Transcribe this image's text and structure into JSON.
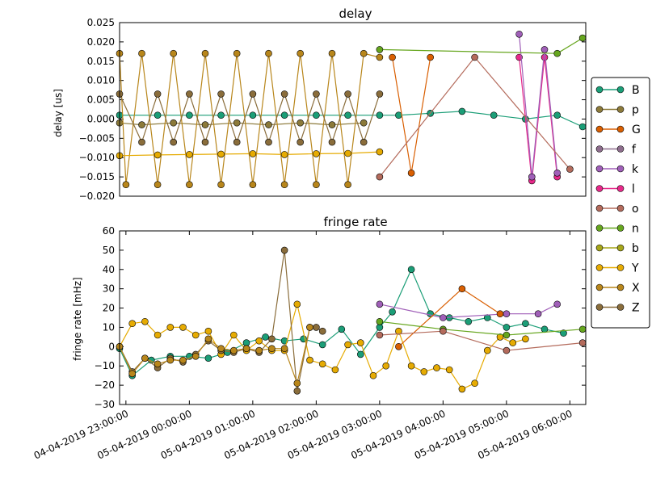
{
  "colors": {
    "B": "#1b9e77",
    "p": "#8c7a3a",
    "G": "#d95f02",
    "f": "#8e6d8d",
    "k": "#a05fb8",
    "l": "#e7298a",
    "o": "#b46b5c",
    "n": "#66a61e",
    "b": "#a6a61a",
    "Y": "#e6ab02",
    "X": "#b8861b",
    "Z": "#8a6d3b"
  },
  "legend": {
    "entries": [
      "B",
      "p",
      "G",
      "f",
      "k",
      "l",
      "o",
      "n",
      "b",
      "Y",
      "X",
      "Z"
    ]
  },
  "chart_data": [
    {
      "type": "line",
      "title": "delay",
      "ylabel": "delay [us]",
      "xlabel": "",
      "ylim": [
        -0.02,
        0.025
      ],
      "yticks": [
        "0.025",
        "0.020",
        "0.015",
        "0.010",
        "0.005",
        "0.000",
        "−0.005",
        "−0.010",
        "−0.015",
        "−0.020"
      ],
      "ytick_values": [
        0.025,
        0.02,
        0.015,
        0.01,
        0.005,
        0.0,
        -0.005,
        -0.01,
        -0.015,
        -0.02
      ],
      "xlim_hours": [
        -0.1,
        7.25
      ],
      "grid": false,
      "series": [
        {
          "name": "B",
          "x": [
            -0.1,
            0.5,
            1.0,
            1.5,
            2.0,
            2.5,
            3.0,
            3.5,
            4.0,
            4.3,
            4.8,
            5.3,
            5.8,
            6.3,
            6.8,
            7.2
          ],
          "y": [
            0.001,
            0.001,
            0.001,
            0.001,
            0.001,
            0.001,
            0.001,
            0.001,
            0.001,
            0.001,
            0.0015,
            0.002,
            0.001,
            0.0,
            0.001,
            -0.002
          ]
        },
        {
          "name": "p",
          "x": [
            -0.1,
            0.25,
            0.75,
            1.25,
            1.75,
            2.25,
            2.75,
            3.25,
            3.75
          ],
          "y": [
            -0.001,
            -0.0015,
            -0.001,
            -0.0015,
            -0.001,
            -0.0015,
            -0.001,
            -0.0015,
            -0.001
          ]
        },
        {
          "name": "X",
          "x": [
            -0.1,
            0.0,
            0.25,
            0.5,
            0.75,
            1.0,
            1.25,
            1.5,
            1.75,
            2.0,
            2.25,
            2.5,
            2.75,
            3.0,
            3.25,
            3.5,
            3.75,
            4.0
          ],
          "y": [
            0.017,
            -0.017,
            0.017,
            -0.017,
            0.017,
            -0.017,
            0.017,
            -0.017,
            0.017,
            -0.017,
            0.017,
            -0.017,
            0.017,
            -0.017,
            0.017,
            -0.017,
            0.017,
            0.016
          ]
        },
        {
          "name": "Y",
          "x": [
            -0.1,
            0.5,
            1.0,
            1.5,
            2.0,
            2.5,
            3.0,
            3.5,
            4.0
          ],
          "y": [
            -0.0095,
            -0.0093,
            -0.0092,
            -0.0091,
            -0.009,
            -0.0092,
            -0.009,
            -0.0089,
            -0.0085
          ]
        },
        {
          "name": "Z",
          "x": [
            -0.1,
            0.25,
            0.5,
            0.75,
            1.0,
            1.25,
            1.5,
            1.75,
            2.0,
            2.25,
            2.5,
            2.75,
            3.0,
            3.25,
            3.5,
            3.75,
            4.0
          ],
          "y": [
            0.0065,
            -0.006,
            0.0065,
            -0.006,
            0.0065,
            -0.006,
            0.0065,
            -0.006,
            0.0065,
            -0.006,
            0.0065,
            -0.006,
            0.0065,
            -0.006,
            0.0065,
            -0.006,
            0.0065
          ]
        },
        {
          "name": "l",
          "x": [
            6.2,
            6.4,
            6.6,
            6.8
          ],
          "y": [
            0.016,
            -0.016,
            0.016,
            -0.015
          ]
        },
        {
          "name": "k",
          "x": [
            6.2,
            6.4,
            6.6,
            6.8
          ],
          "y": [
            0.022,
            -0.015,
            0.018,
            -0.014
          ]
        },
        {
          "name": "n",
          "x": [
            4.0,
            6.8,
            7.2
          ],
          "y": [
            0.018,
            0.017,
            0.021
          ]
        },
        {
          "name": "G",
          "x": [
            4.2,
            4.5,
            4.8
          ],
          "y": [
            0.016,
            -0.014,
            0.016
          ]
        },
        {
          "name": "o",
          "x": [
            4.0,
            5.5,
            7.0
          ],
          "y": [
            -0.015,
            0.016,
            -0.013
          ]
        }
      ]
    },
    {
      "type": "line",
      "title": "fringe rate",
      "ylabel": "fringe rate [mHz]",
      "xlabel": "",
      "ylim": [
        -30,
        60
      ],
      "yticks": [
        "60",
        "50",
        "40",
        "30",
        "20",
        "10",
        "0",
        "−10",
        "−20",
        "−30"
      ],
      "ytick_values": [
        60,
        50,
        40,
        30,
        20,
        10,
        0,
        -10,
        -20,
        -30
      ],
      "xlim_hours": [
        -0.1,
        7.25
      ],
      "grid": false,
      "xtick_labels": [
        "04-04-2019 23:00:00",
        "05-04-2019 00:00:00",
        "05-04-2019 01:00:00",
        "05-04-2019 02:00:00",
        "05-04-2019 03:00:00",
        "05-04-2019 04:00:00",
        "05-04-2019 05:00:00",
        "05-04-2019 06:00:00"
      ],
      "xtick_hours": [
        0,
        1,
        2,
        3,
        4,
        5,
        6,
        7
      ],
      "series": [
        {
          "name": "B",
          "x": [
            -0.1,
            0.1,
            0.4,
            0.7,
            1.0,
            1.3,
            1.6,
            1.9,
            2.2,
            2.5,
            2.8,
            3.1,
            3.4,
            3.7,
            4.0,
            4.2,
            4.5,
            4.8,
            5.1,
            5.4,
            5.7,
            6.0,
            6.3,
            6.6,
            6.9
          ],
          "y": [
            -1,
            -15,
            -7,
            -5,
            -5,
            -6,
            -3,
            2,
            5,
            3,
            4,
            1,
            9,
            -4,
            10,
            18,
            40,
            17,
            15,
            13,
            15,
            10,
            12,
            9,
            7
          ]
        },
        {
          "name": "Y",
          "x": [
            -0.1,
            0.1,
            0.3,
            0.5,
            0.7,
            0.9,
            1.1,
            1.3,
            1.5,
            1.7,
            1.9,
            2.1,
            2.3,
            2.5,
            2.7,
            2.9,
            3.1,
            3.3,
            3.5,
            3.7,
            3.9,
            4.1,
            4.3,
            4.5,
            4.7,
            4.9,
            5.1,
            5.3,
            5.5,
            5.7,
            5.9,
            6.1,
            6.3
          ],
          "y": [
            0,
            12,
            13,
            6,
            10,
            10,
            6,
            8,
            -4,
            6,
            -2,
            3,
            -2,
            -2,
            22,
            -7,
            -9,
            -12,
            1,
            2,
            -15,
            -10,
            8,
            -10,
            -13,
            -11,
            -12,
            -22,
            -19,
            -2,
            5,
            2,
            4
          ]
        },
        {
          "name": "Z",
          "x": [
            -0.1,
            0.1,
            0.3,
            0.5,
            0.7,
            0.9,
            1.1,
            1.3,
            1.5,
            1.7,
            1.9,
            2.1,
            2.3,
            2.5,
            2.7,
            2.9,
            3.0,
            3.1
          ],
          "y": [
            0,
            -13,
            -6,
            -11,
            -6,
            -8,
            -4,
            3,
            -2,
            -3,
            -1,
            -3,
            4,
            50,
            -23,
            10,
            10,
            8
          ]
        },
        {
          "name": "X",
          "x": [
            -0.1,
            0.1,
            0.3,
            0.5,
            0.7,
            0.9,
            1.1,
            1.3,
            1.5,
            1.7,
            1.9,
            2.1,
            2.3,
            2.5,
            2.7,
            2.9
          ],
          "y": [
            0,
            -14,
            -6,
            -9,
            -7,
            -7,
            -5,
            4,
            -1,
            -2,
            -1,
            -2,
            -1,
            -1,
            -19,
            10
          ]
        },
        {
          "name": "k",
          "x": [
            4.0,
            5.0,
            6.0,
            6.5,
            6.8
          ],
          "y": [
            22,
            15,
            17,
            17,
            22
          ]
        },
        {
          "name": "G",
          "x": [
            4.3,
            5.3,
            5.9
          ],
          "y": [
            0,
            30,
            17
          ]
        },
        {
          "name": "n",
          "x": [
            4.0,
            5.0,
            6.0,
            7.2
          ],
          "y": [
            13,
            9,
            6,
            9
          ]
        },
        {
          "name": "o",
          "x": [
            4.0,
            5.0,
            6.0,
            7.2
          ],
          "y": [
            6,
            8,
            -2,
            2
          ]
        }
      ]
    }
  ]
}
